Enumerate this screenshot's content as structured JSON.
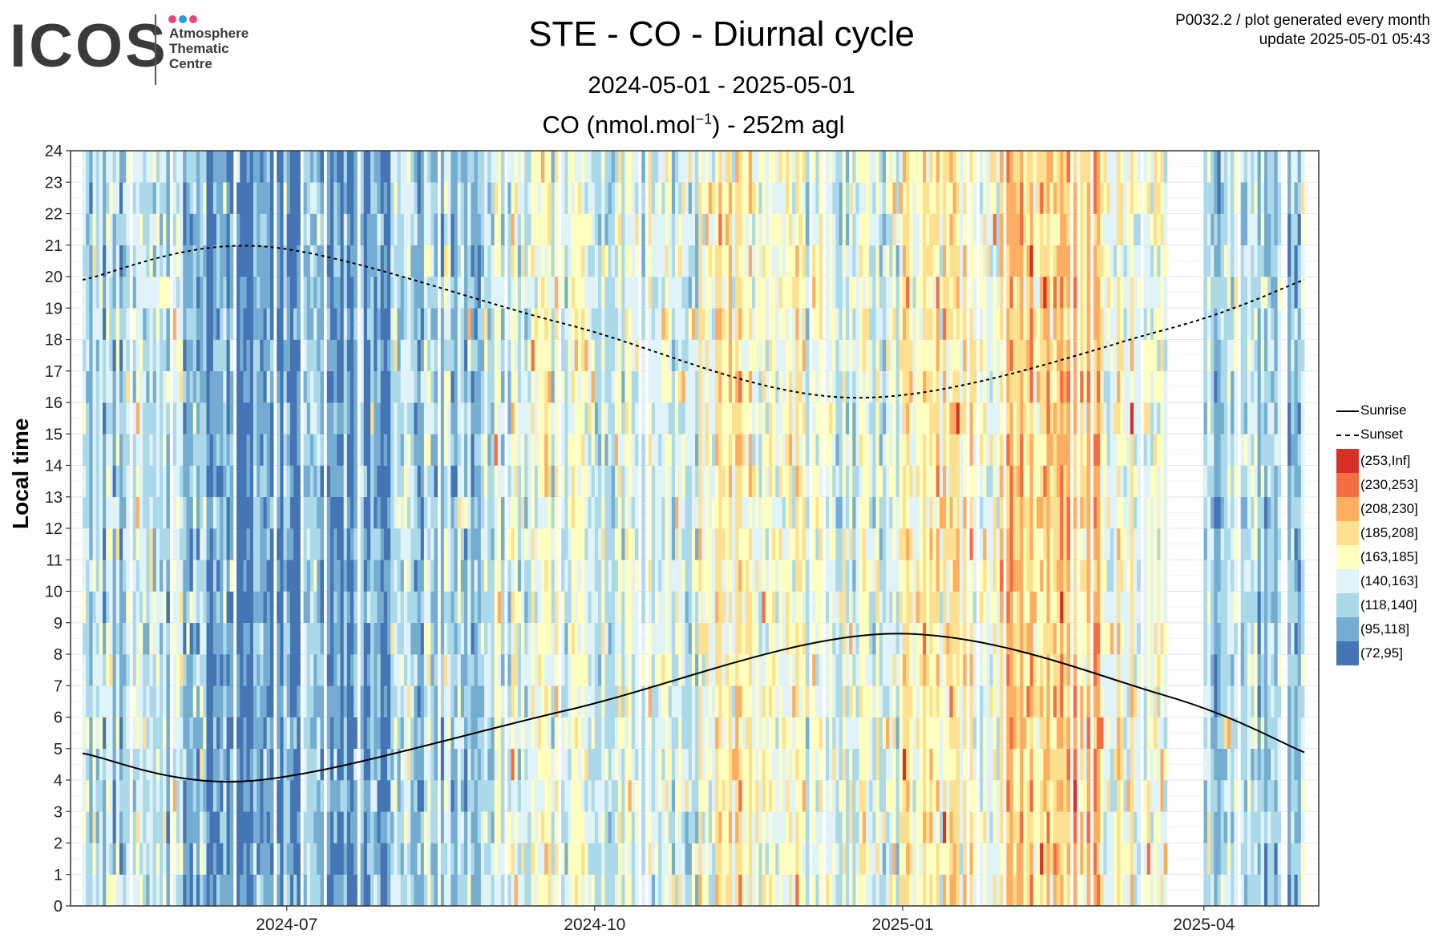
{
  "logo": {
    "word": "ICOS",
    "text": [
      "Atmosphere",
      "Thematic",
      "Centre"
    ],
    "dot_colors": [
      "#e8457c",
      "#2b9be0",
      "#e8457c"
    ]
  },
  "header": {
    "title": "STE - CO - Diurnal cycle",
    "date_range": "2024-05-01 - 2025-05-01",
    "measure_prefix": "CO (nmol.mol",
    "measure_exp": "−1",
    "measure_suffix": ") - 252m agl",
    "meta_line1": "P0032.2 / plot generated every month",
    "meta_line2": "update  2025-05-01 05:43"
  },
  "chart_data": {
    "type": "heatmap",
    "ylabel": "Local time",
    "xlabel": "",
    "x_ticks": [
      "2024-07",
      "2024-10",
      "2025-01",
      "2025-04"
    ],
    "y_ticks": [
      0,
      1,
      2,
      3,
      4,
      5,
      6,
      7,
      8,
      9,
      10,
      11,
      12,
      13,
      14,
      15,
      16,
      17,
      18,
      19,
      20,
      21,
      22,
      23,
      24
    ],
    "ylim": [
      0,
      24
    ],
    "xlim": [
      "2024-05-01",
      "2025-05-01"
    ],
    "grid": true,
    "data_gap": [
      "2025-03-21",
      "2025-04-01"
    ],
    "legend_position": "right",
    "lines": [
      {
        "name": "Sunrise",
        "style": "solid",
        "points": [
          [
            "2024-05-01",
            4.85
          ],
          [
            "2024-06-21",
            3.98
          ],
          [
            "2024-09-22",
            6.2
          ],
          [
            "2024-12-28",
            8.65
          ],
          [
            "2025-03-20",
            6.7
          ],
          [
            "2025-05-01",
            4.88
          ]
        ]
      },
      {
        "name": "Sunset",
        "style": "dashed",
        "points": [
          [
            "2024-05-01",
            19.9
          ],
          [
            "2024-06-25",
            20.95
          ],
          [
            "2024-09-22",
            18.5
          ],
          [
            "2024-12-18",
            16.15
          ],
          [
            "2025-03-20",
            18.3
          ],
          [
            "2025-05-01",
            19.9
          ]
        ]
      }
    ],
    "bins": [
      {
        "label": "(253,Inf]",
        "color": "#d73027"
      },
      {
        "label": "(230,253]",
        "color": "#f46d43"
      },
      {
        "label": "(208,230]",
        "color": "#fdae61"
      },
      {
        "label": "(185,208]",
        "color": "#fee090"
      },
      {
        "label": "(163,185]",
        "color": "#ffffbf"
      },
      {
        "label": "(140,163]",
        "color": "#e0f3f8"
      },
      {
        "label": "(118,140]",
        "color": "#abd9e9"
      },
      {
        "label": "(95,118]",
        "color": "#74add1"
      },
      {
        "label": "(72,95]",
        "color": "#4575b4"
      }
    ],
    "monthly_typical_bin": [
      {
        "month": "2024-05",
        "bin": "(118,140]"
      },
      {
        "month": "2024-06",
        "bin": "(95,118]"
      },
      {
        "month": "2024-07",
        "bin": "(95,118]"
      },
      {
        "month": "2024-08",
        "bin": "(118,140]"
      },
      {
        "month": "2024-09",
        "bin": "(140,163]"
      },
      {
        "month": "2024-10",
        "bin": "(140,163]"
      },
      {
        "month": "2024-11",
        "bin": "(163,185]"
      },
      {
        "month": "2024-12",
        "bin": "(140,163]"
      },
      {
        "month": "2025-01",
        "bin": "(163,185]"
      },
      {
        "month": "2025-02",
        "bin": "(185,208]"
      },
      {
        "month": "2025-03",
        "bin": "(163,185]"
      },
      {
        "month": "2025-04",
        "bin": "(118,140]"
      }
    ]
  }
}
